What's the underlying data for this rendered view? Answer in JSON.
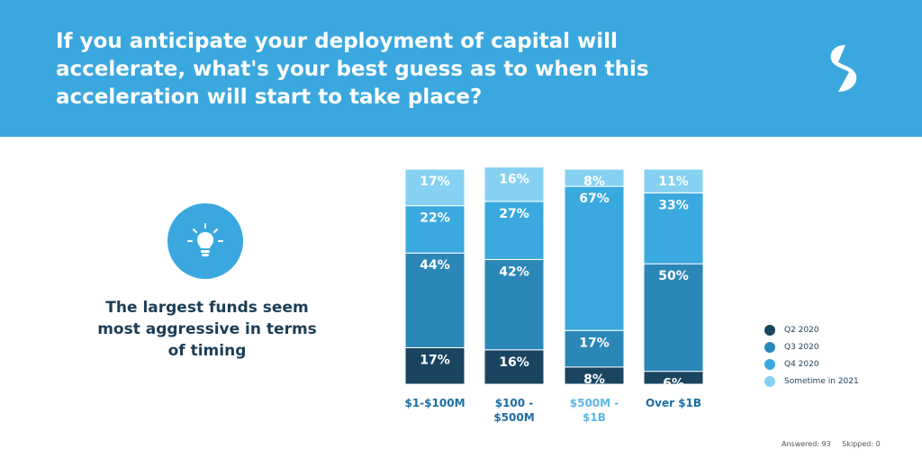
{
  "header": {
    "title": "If you anticipate your deployment of capital will\naccelerate, what's your best guess as to when this\nacceleration will start to take place?",
    "background": "#3aa8df"
  },
  "logo": {
    "icon": "brand-s-logo-icon"
  },
  "insight": {
    "icon": "lightbulb-icon",
    "text": "The largest funds seem\nmost aggressive in terms\nof timing"
  },
  "chart_data": {
    "type": "bar",
    "stacked": true,
    "percent": true,
    "categories": [
      "$1-$100M",
      "$100 -\n$500M",
      "$500M -\n$1B",
      "Over $1B"
    ],
    "category_colors": [
      "#1c6ea4",
      "#1c6ea4",
      "#5cb8e6",
      "#1c6ea4"
    ],
    "series": [
      {
        "name": "Q2 2020",
        "color": "#1a4560",
        "values": [
          17,
          16,
          8,
          6
        ]
      },
      {
        "name": "Q3 2020",
        "color": "#2b87b8",
        "values": [
          44,
          42,
          17,
          50
        ]
      },
      {
        "name": "Q4 2020",
        "color": "#39a9df",
        "values": [
          22,
          27,
          67,
          33
        ]
      },
      {
        "name": "Sometime in 2021",
        "color": "#86d1f2",
        "values": [
          17,
          16,
          8,
          11
        ]
      }
    ],
    "value_suffix": "%",
    "ylim": [
      0,
      100
    ],
    "legend_position": "right"
  },
  "footer": {
    "answered": "Answered: 93",
    "skipped": "Skipped: 0"
  }
}
